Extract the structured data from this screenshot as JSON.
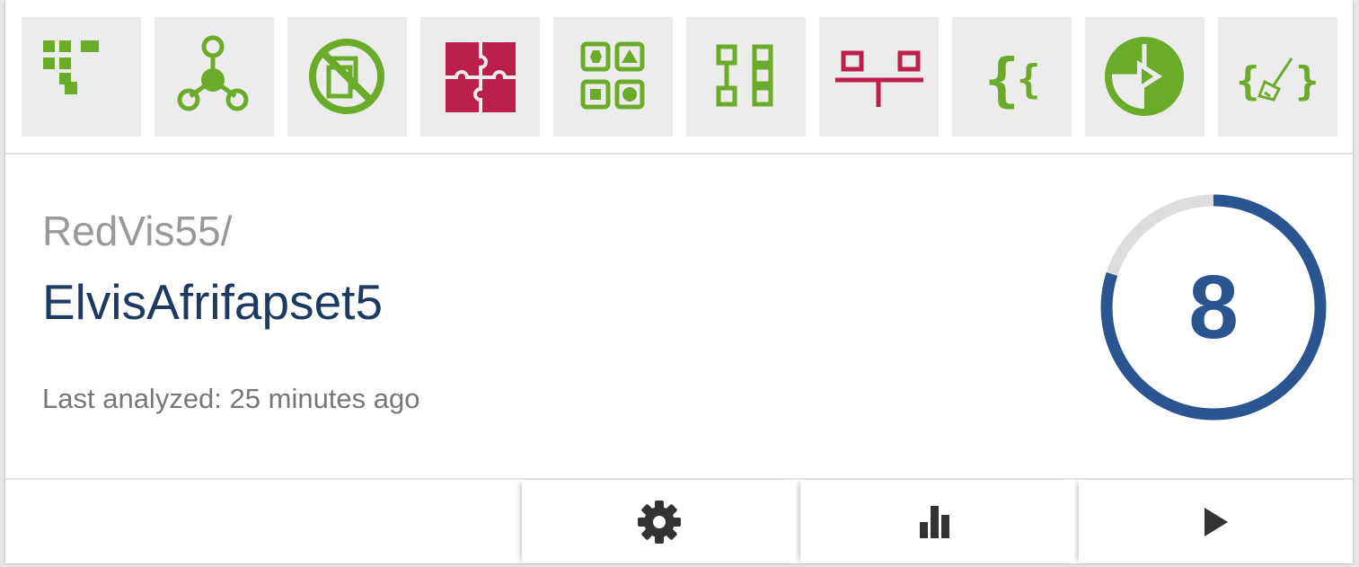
{
  "repo": {
    "owner": "RedVis55/",
    "name": "ElvisAfrifapset5",
    "last_analyzed": "Last analyzed: 25 minutes ago"
  },
  "score": {
    "value": "8",
    "fraction": 0.8
  },
  "badges": [
    {
      "icon": "grid-blocks-icon",
      "color": "#6aab29"
    },
    {
      "icon": "network-nodes-icon",
      "color": "#6aab29"
    },
    {
      "icon": "no-copy-icon",
      "color": "#6aab29"
    },
    {
      "icon": "puzzle-icon",
      "color": "#bc1f4b"
    },
    {
      "icon": "shapes-grid-icon",
      "color": "#6aab29"
    },
    {
      "icon": "flowchart-icon",
      "color": "#6aab29"
    },
    {
      "icon": "balance-structure-icon",
      "color": "#bc1f4b"
    },
    {
      "icon": "braces-icon",
      "color": "#6aab29"
    },
    {
      "icon": "play-circle-icon",
      "color": "#6aab29"
    },
    {
      "icon": "code-broom-icon",
      "color": "#6aab29"
    }
  ],
  "actions": [
    {
      "icon": "gear-icon"
    },
    {
      "icon": "bar-chart-icon"
    },
    {
      "icon": "play-icon"
    }
  ],
  "colors": {
    "green": "#6aab29",
    "crimson": "#bc1f4b",
    "ring_blue": "#2a5590",
    "ring_track": "#dddddd",
    "repo_name": "#1f3a60"
  }
}
